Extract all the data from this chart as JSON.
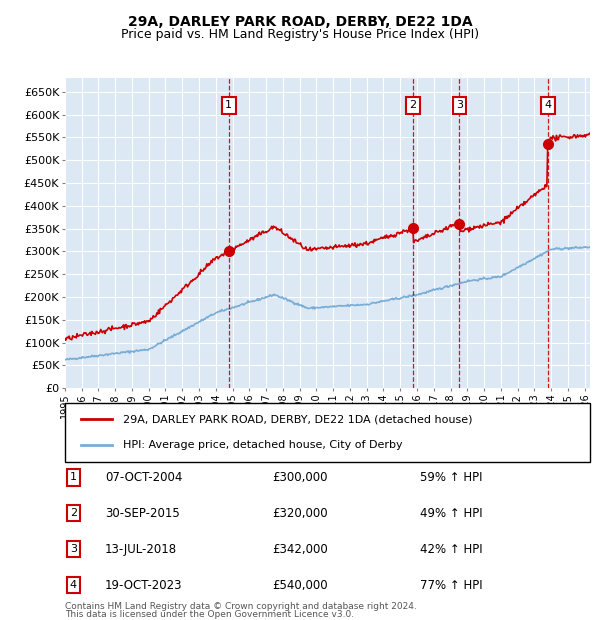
{
  "title1": "29A, DARLEY PARK ROAD, DERBY, DE22 1DA",
  "title2": "Price paid vs. HM Land Registry's House Price Index (HPI)",
  "ylim": [
    0,
    680000
  ],
  "yticks": [
    0,
    50000,
    100000,
    150000,
    200000,
    250000,
    300000,
    350000,
    400000,
    450000,
    500000,
    550000,
    600000,
    650000
  ],
  "ytick_labels": [
    "£0",
    "£50K",
    "£100K",
    "£150K",
    "£200K",
    "£250K",
    "£300K",
    "£350K",
    "£400K",
    "£450K",
    "£500K",
    "£550K",
    "£600K",
    "£650K"
  ],
  "plot_bg": "#dce9f5",
  "sale_color": "#cc0000",
  "hpi_color": "#7aadd4",
  "sale_label": "29A, DARLEY PARK ROAD, DERBY, DE22 1DA (detached house)",
  "hpi_label": "HPI: Average price, detached house, City of Derby",
  "sales": [
    {
      "num": 1,
      "date_x": 2004.77,
      "price": 300000,
      "pct": "59%",
      "date_str": "07-OCT-2004"
    },
    {
      "num": 2,
      "date_x": 2015.75,
      "price": 320000,
      "pct": "49%",
      "date_str": "30-SEP-2015"
    },
    {
      "num": 3,
      "date_x": 2018.53,
      "price": 342000,
      "pct": "42%",
      "date_str": "13-JUL-2018"
    },
    {
      "num": 4,
      "date_x": 2023.79,
      "price": 540000,
      "pct": "77%",
      "date_str": "19-OCT-2023"
    }
  ],
  "footer1": "Contains HM Land Registry data © Crown copyright and database right 2024.",
  "footer2": "This data is licensed under the Open Government Licence v3.0.",
  "grid_color": "#ffffff",
  "xlim_start": 1995,
  "xlim_end": 2026.3
}
